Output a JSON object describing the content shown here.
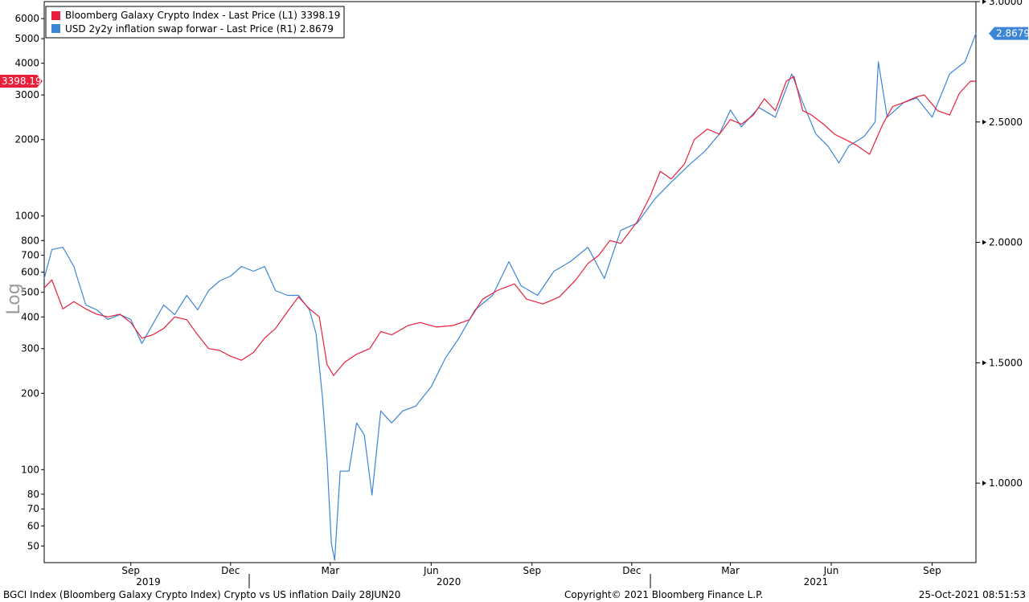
{
  "chart_data": {
    "type": "line",
    "title": "",
    "x_range": [
      "2019-06-28",
      "2021-10-25"
    ],
    "month_ticks": [
      {
        "label": "Sep",
        "date": "2019-09-15"
      },
      {
        "label": "Dec",
        "date": "2019-12-15"
      },
      {
        "label": "Mar",
        "date": "2020-03-15"
      },
      {
        "label": "Jun",
        "date": "2020-06-15"
      },
      {
        "label": "Sep",
        "date": "2020-09-15"
      },
      {
        "label": "Dec",
        "date": "2020-12-15"
      },
      {
        "label": "Mar",
        "date": "2021-03-15"
      },
      {
        "label": "Jun",
        "date": "2021-06-15"
      },
      {
        "label": "Sep",
        "date": "2021-09-15"
      }
    ],
    "year_labels": [
      {
        "label": "2019",
        "date": "2019-10-01"
      },
      {
        "label": "2020",
        "date": "2020-07-01"
      },
      {
        "label": "2021",
        "date": "2021-06-01"
      }
    ],
    "year_separators": [
      "2020-01-01",
      "2021-01-01"
    ],
    "left_axis": {
      "scale": "log",
      "label": "Log",
      "ylim": [
        43,
        7000
      ],
      "ticks": [
        {
          "v": 50,
          "label": "50"
        },
        {
          "v": 60,
          "label": "60"
        },
        {
          "v": 70,
          "label": "70"
        },
        {
          "v": 80,
          "label": "80"
        },
        {
          "v": 100,
          "label": "100"
        },
        {
          "v": 200,
          "label": "200"
        },
        {
          "v": 300,
          "label": "300"
        },
        {
          "v": 400,
          "label": "400"
        },
        {
          "v": 500,
          "label": "500"
        },
        {
          "v": 600,
          "label": "600"
        },
        {
          "v": 700,
          "label": "700"
        },
        {
          "v": 800,
          "label": "800"
        },
        {
          "v": 1000,
          "label": "1000"
        },
        {
          "v": 2000,
          "label": "2000"
        },
        {
          "v": 3000,
          "label": "3000"
        },
        {
          "v": 4000,
          "label": "4000"
        },
        {
          "v": 5000,
          "label": "5000"
        },
        {
          "v": 6000,
          "label": "6000"
        }
      ]
    },
    "right_axis": {
      "scale": "linear",
      "ylim": [
        0.67,
        3.0
      ],
      "ticks": [
        {
          "v": 1.0,
          "label": "1.0000"
        },
        {
          "v": 1.5,
          "label": "1.5000"
        },
        {
          "v": 2.0,
          "label": "2.0000"
        },
        {
          "v": 2.5,
          "label": "2.5000"
        },
        {
          "v": 3.0,
          "label": "3.0000"
        }
      ]
    },
    "series": [
      {
        "name": "Bloomberg Galaxy Crypto Index - Last Price (L1)",
        "last": "3398.19",
        "axis": "left",
        "color": "#e8203c",
        "points": [
          [
            "2019-06-28",
            520
          ],
          [
            "2019-07-05",
            560
          ],
          [
            "2019-07-15",
            430
          ],
          [
            "2019-07-25",
            460
          ],
          [
            "2019-08-05",
            430
          ],
          [
            "2019-08-15",
            410
          ],
          [
            "2019-08-25",
            400
          ],
          [
            "2019-09-05",
            410
          ],
          [
            "2019-09-15",
            380
          ],
          [
            "2019-09-25",
            330
          ],
          [
            "2019-10-05",
            340
          ],
          [
            "2019-10-15",
            360
          ],
          [
            "2019-10-25",
            400
          ],
          [
            "2019-11-05",
            390
          ],
          [
            "2019-11-15",
            340
          ],
          [
            "2019-11-25",
            300
          ],
          [
            "2019-12-05",
            295
          ],
          [
            "2019-12-15",
            280
          ],
          [
            "2019-12-25",
            270
          ],
          [
            "2020-01-05",
            290
          ],
          [
            "2020-01-15",
            330
          ],
          [
            "2020-01-25",
            360
          ],
          [
            "2020-02-05",
            420
          ],
          [
            "2020-02-15",
            480
          ],
          [
            "2020-02-25",
            430
          ],
          [
            "2020-03-05",
            400
          ],
          [
            "2020-03-12",
            260
          ],
          [
            "2020-03-18",
            235
          ],
          [
            "2020-03-28",
            265
          ],
          [
            "2020-04-08",
            285
          ],
          [
            "2020-04-20",
            300
          ],
          [
            "2020-04-30",
            350
          ],
          [
            "2020-05-10",
            340
          ],
          [
            "2020-05-25",
            370
          ],
          [
            "2020-06-05",
            380
          ],
          [
            "2020-06-20",
            365
          ],
          [
            "2020-07-05",
            370
          ],
          [
            "2020-07-20",
            390
          ],
          [
            "2020-08-01",
            470
          ],
          [
            "2020-08-15",
            510
          ],
          [
            "2020-08-30",
            540
          ],
          [
            "2020-09-10",
            470
          ],
          [
            "2020-09-25",
            450
          ],
          [
            "2020-10-10",
            480
          ],
          [
            "2020-10-25",
            560
          ],
          [
            "2020-11-05",
            650
          ],
          [
            "2020-11-15",
            700
          ],
          [
            "2020-11-25",
            800
          ],
          [
            "2020-12-05",
            780
          ],
          [
            "2020-12-20",
            950
          ],
          [
            "2021-01-01",
            1200
          ],
          [
            "2021-01-10",
            1500
          ],
          [
            "2021-01-20",
            1400
          ],
          [
            "2021-02-01",
            1600
          ],
          [
            "2021-02-10",
            2000
          ],
          [
            "2021-02-22",
            2200
          ],
          [
            "2021-03-05",
            2100
          ],
          [
            "2021-03-15",
            2400
          ],
          [
            "2021-03-25",
            2300
          ],
          [
            "2021-04-05",
            2500
          ],
          [
            "2021-04-15",
            2900
          ],
          [
            "2021-04-25",
            2600
          ],
          [
            "2021-05-05",
            3400
          ],
          [
            "2021-05-12",
            3550
          ],
          [
            "2021-05-20",
            2600
          ],
          [
            "2021-05-28",
            2500
          ],
          [
            "2021-06-08",
            2300
          ],
          [
            "2021-06-18",
            2100
          ],
          [
            "2021-06-28",
            2000
          ],
          [
            "2021-07-08",
            1900
          ],
          [
            "2021-07-20",
            1750
          ],
          [
            "2021-08-01",
            2300
          ],
          [
            "2021-08-10",
            2700
          ],
          [
            "2021-08-20",
            2800
          ],
          [
            "2021-09-01",
            2950
          ],
          [
            "2021-09-08",
            3000
          ],
          [
            "2021-09-20",
            2600
          ],
          [
            "2021-10-01",
            2500
          ],
          [
            "2021-10-10",
            3050
          ],
          [
            "2021-10-20",
            3400
          ],
          [
            "2021-10-25",
            3398.19
          ]
        ]
      },
      {
        "name": "USD 2y2y inflation swap forwar - Last Price (R1)",
        "last": "2.8679",
        "axis": "right",
        "color": "#3d86d6",
        "points": [
          [
            "2019-06-28",
            1.85
          ],
          [
            "2019-07-05",
            1.97
          ],
          [
            "2019-07-15",
            1.98
          ],
          [
            "2019-07-25",
            1.9
          ],
          [
            "2019-08-05",
            1.74
          ],
          [
            "2019-08-15",
            1.72
          ],
          [
            "2019-08-25",
            1.68
          ],
          [
            "2019-09-05",
            1.7
          ],
          [
            "2019-09-15",
            1.68
          ],
          [
            "2019-09-25",
            1.58
          ],
          [
            "2019-10-05",
            1.66
          ],
          [
            "2019-10-15",
            1.74
          ],
          [
            "2019-10-25",
            1.7
          ],
          [
            "2019-11-05",
            1.78
          ],
          [
            "2019-11-15",
            1.72
          ],
          [
            "2019-11-25",
            1.8
          ],
          [
            "2019-12-05",
            1.84
          ],
          [
            "2019-12-15",
            1.86
          ],
          [
            "2019-12-25",
            1.9
          ],
          [
            "2020-01-05",
            1.88
          ],
          [
            "2020-01-15",
            1.9
          ],
          [
            "2020-01-25",
            1.8
          ],
          [
            "2020-02-05",
            1.78
          ],
          [
            "2020-02-15",
            1.78
          ],
          [
            "2020-02-25",
            1.72
          ],
          [
            "2020-03-02",
            1.62
          ],
          [
            "2020-03-08",
            1.35
          ],
          [
            "2020-03-12",
            1.1
          ],
          [
            "2020-03-16",
            0.75
          ],
          [
            "2020-03-19",
            0.68
          ],
          [
            "2020-03-24",
            1.05
          ],
          [
            "2020-04-01",
            1.05
          ],
          [
            "2020-04-08",
            1.25
          ],
          [
            "2020-04-15",
            1.2
          ],
          [
            "2020-04-22",
            0.95
          ],
          [
            "2020-04-30",
            1.3
          ],
          [
            "2020-05-10",
            1.25
          ],
          [
            "2020-05-20",
            1.3
          ],
          [
            "2020-06-01",
            1.32
          ],
          [
            "2020-06-15",
            1.4
          ],
          [
            "2020-06-28",
            1.52
          ],
          [
            "2020-07-10",
            1.6
          ],
          [
            "2020-07-25",
            1.72
          ],
          [
            "2020-08-10",
            1.78
          ],
          [
            "2020-08-25",
            1.92
          ],
          [
            "2020-09-05",
            1.82
          ],
          [
            "2020-09-20",
            1.78
          ],
          [
            "2020-10-05",
            1.88
          ],
          [
            "2020-10-20",
            1.92
          ],
          [
            "2020-11-05",
            1.98
          ],
          [
            "2020-11-20",
            1.85
          ],
          [
            "2020-12-05",
            2.05
          ],
          [
            "2020-12-20",
            2.08
          ],
          [
            "2021-01-05",
            2.18
          ],
          [
            "2021-01-20",
            2.25
          ],
          [
            "2021-02-05",
            2.32
          ],
          [
            "2021-02-20",
            2.38
          ],
          [
            "2021-03-05",
            2.45
          ],
          [
            "2021-03-15",
            2.55
          ],
          [
            "2021-03-25",
            2.48
          ],
          [
            "2021-04-10",
            2.56
          ],
          [
            "2021-04-25",
            2.52
          ],
          [
            "2021-05-10",
            2.7
          ],
          [
            "2021-05-20",
            2.58
          ],
          [
            "2021-06-01",
            2.45
          ],
          [
            "2021-06-12",
            2.4
          ],
          [
            "2021-06-22",
            2.33
          ],
          [
            "2021-07-01",
            2.4
          ],
          [
            "2021-07-15",
            2.44
          ],
          [
            "2021-07-25",
            2.5
          ],
          [
            "2021-07-28",
            2.75
          ],
          [
            "2021-08-05",
            2.52
          ],
          [
            "2021-08-20",
            2.58
          ],
          [
            "2021-09-01",
            2.6
          ],
          [
            "2021-09-15",
            2.52
          ],
          [
            "2021-10-01",
            2.7
          ],
          [
            "2021-10-15",
            2.75
          ],
          [
            "2021-10-25",
            2.8679
          ]
        ]
      }
    ]
  },
  "footer": {
    "left": "BGCI Index (Bloomberg Galaxy Crypto Index) Crypto vs US inflation  Daily 28JUN20",
    "center": "Copyright© 2021 Bloomberg Finance L.P.",
    "right": "25-Oct-2021 08:51:53"
  }
}
